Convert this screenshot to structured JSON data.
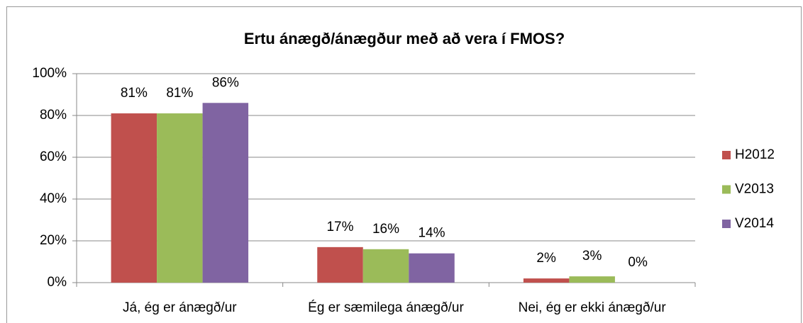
{
  "chart_data": {
    "type": "bar",
    "title": "Ertu ánægð/ánægður með að vera í FMOS?",
    "categories": [
      "Já, ég er ánægð/ur",
      "Ég er sæmilega ánægð/ur",
      "Nei, ég er ekki ánægð/ur"
    ],
    "series": [
      {
        "name": "H2012",
        "color": "#c0504d",
        "values": [
          81,
          17,
          2
        ],
        "value_labels": [
          "81%",
          "17%",
          "2%"
        ]
      },
      {
        "name": "V2013",
        "color": "#9bbb59",
        "values": [
          81,
          16,
          3
        ],
        "value_labels": [
          "81%",
          "16%",
          "3%"
        ]
      },
      {
        "name": "V2014",
        "color": "#8064a2",
        "values": [
          86,
          14,
          0
        ],
        "value_labels": [
          "86%",
          "14%",
          "0%"
        ]
      }
    ],
    "ylim": [
      0,
      100
    ],
    "yticks": [
      {
        "value": 0,
        "label": "0%"
      },
      {
        "value": 20,
        "label": "20%"
      },
      {
        "value": 40,
        "label": "40%"
      },
      {
        "value": 60,
        "label": "60%"
      },
      {
        "value": 80,
        "label": "80%"
      },
      {
        "value": 100,
        "label": "100%"
      }
    ],
    "grid": true,
    "legend": "right"
  }
}
